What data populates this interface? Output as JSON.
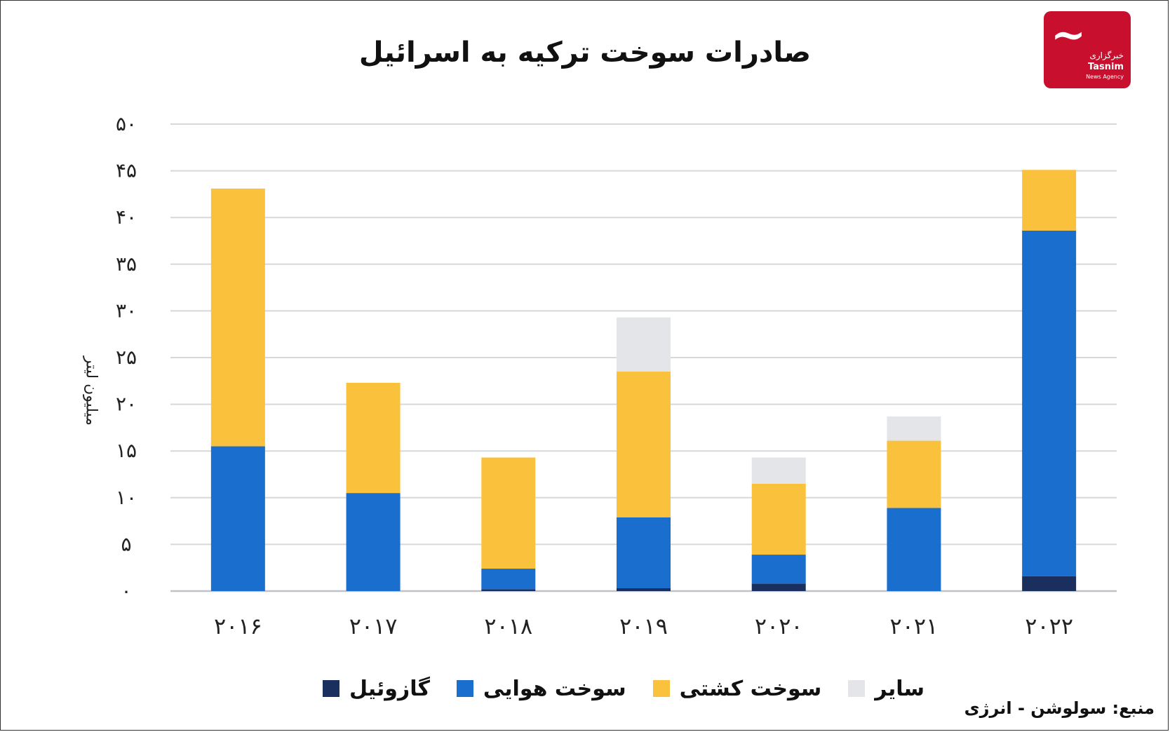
{
  "title": "صادرات سوخت ترکیه به اسرائیل",
  "logo": {
    "fa": "خبرگزاری",
    "en": "Tasnim",
    "sub": "News Agency"
  },
  "source": "منبع: سولوشن - انرژی",
  "chart_data": {
    "type": "bar",
    "stacked": true,
    "title": "صادرات سوخت ترکیه به اسرائیل",
    "ylabel": "میلیون لیتر",
    "xlabel": "",
    "ylim": [
      0,
      50
    ],
    "yticks": [
      0,
      5,
      10,
      15,
      20,
      25,
      30,
      35,
      40,
      45,
      50
    ],
    "ytick_labels": [
      "۰",
      "۵",
      "۱۰",
      "۱۵",
      "۲۰",
      "۲۵",
      "۳۰",
      "۳۵",
      "۴۰",
      "۴۵",
      "۵۰"
    ],
    "categories": [
      "۲۰۱۶",
      "۲۰۱۷",
      "۲۰۱۸",
      "۲۰۱۹",
      "۲۰۲۰",
      "۲۰۲۱",
      "۲۰۲۲"
    ],
    "series": [
      {
        "name": "گازوئیل",
        "color": "#1b2f5e",
        "values": [
          0,
          0,
          0.2,
          0.3,
          0.8,
          0,
          1.6
        ]
      },
      {
        "name": "سوخت هوایی",
        "color": "#1a6fce",
        "values": [
          15.5,
          10.5,
          2.2,
          7.6,
          3.1,
          8.9,
          37.0
        ]
      },
      {
        "name": "سوخت کشتی",
        "color": "#fac23c",
        "values": [
          27.6,
          11.8,
          11.9,
          15.6,
          7.6,
          7.2,
          6.5
        ]
      },
      {
        "name": "سایر",
        "color": "#e3e5e8",
        "values": [
          0,
          0,
          0,
          5.8,
          2.8,
          2.6,
          0
        ]
      }
    ],
    "legend_position": "bottom",
    "grid": true
  }
}
